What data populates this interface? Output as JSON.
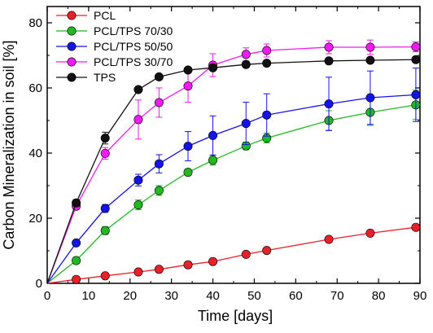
{
  "chart_data": {
    "type": "line",
    "title": "",
    "xlabel": "Time [days]",
    "ylabel": "Carbon Mineralization in soil [%]",
    "xlim": [
      0,
      90
    ],
    "ylim": [
      0,
      85
    ],
    "xticks": [
      0,
      10,
      20,
      30,
      40,
      50,
      60,
      70,
      80,
      90
    ],
    "yticks": [
      0,
      20,
      40,
      60,
      80
    ],
    "grid": false,
    "legend_position": "top-left",
    "series": [
      {
        "name": "PCL",
        "color": "#e8202a",
        "x": [
          0,
          7,
          14,
          22,
          27,
          34,
          40,
          48,
          53,
          68,
          78,
          89
        ],
        "y": [
          0,
          1.2,
          2.3,
          3.5,
          4.3,
          5.7,
          6.7,
          8.9,
          10.1,
          13.5,
          15.4,
          17.2
        ],
        "err": [
          0,
          0,
          0,
          0,
          0,
          0,
          0,
          0.8,
          0.8,
          0,
          0,
          0
        ]
      },
      {
        "name": "PCL/TPS 70/30",
        "color": "#22b822",
        "x": [
          0,
          7,
          14,
          22,
          27,
          34,
          40,
          48,
          53,
          68,
          78,
          89
        ],
        "y": [
          0,
          7.0,
          16.2,
          24.1,
          28.5,
          34.1,
          37.8,
          42.2,
          44.6,
          50.0,
          52.5,
          54.8
        ],
        "err": [
          0,
          1.0,
          1.2,
          1.5,
          1.5,
          1.0,
          1.5,
          1.2,
          1.5,
          3.0,
          4.0,
          4.5
        ]
      },
      {
        "name": "PCL/TPS 50/50",
        "color": "#1414e6",
        "x": [
          0,
          7,
          14,
          22,
          27,
          34,
          40,
          48,
          53,
          68,
          78,
          89
        ],
        "y": [
          0,
          12.4,
          23.0,
          31.7,
          36.7,
          42.1,
          45.4,
          49.1,
          51.7,
          55.1,
          57.0,
          57.9
        ],
        "err": [
          0,
          0.8,
          1.2,
          1.8,
          2.8,
          4.5,
          6.0,
          6.5,
          6.5,
          8.2,
          8.2,
          8.2
        ]
      },
      {
        "name": "PCL/TPS 30/70",
        "color": "#ee1cee",
        "x": [
          0,
          7,
          14,
          22,
          27,
          34,
          40,
          48,
          53,
          68,
          78,
          89
        ],
        "y": [
          0,
          23.7,
          39.9,
          50.3,
          55.5,
          60.6,
          67.0,
          70.3,
          71.5,
          72.5,
          72.5,
          72.6
        ],
        "err": [
          0,
          1.0,
          1.8,
          6.0,
          4.5,
          5.0,
          3.5,
          2.0,
          2.0,
          2.0,
          2.2,
          1.5
        ]
      },
      {
        "name": "TPS",
        "color": "#111111",
        "x": [
          0,
          7,
          14,
          22,
          27,
          34,
          40,
          48,
          53,
          68,
          78,
          89
        ],
        "y": [
          0,
          24.7,
          44.6,
          59.5,
          63.4,
          65.5,
          66.2,
          67.2,
          67.6,
          68.3,
          68.5,
          68.7
        ],
        "err": [
          0,
          1.0,
          1.8,
          0,
          0,
          0,
          0,
          0,
          0,
          0,
          0,
          0
        ]
      }
    ]
  }
}
